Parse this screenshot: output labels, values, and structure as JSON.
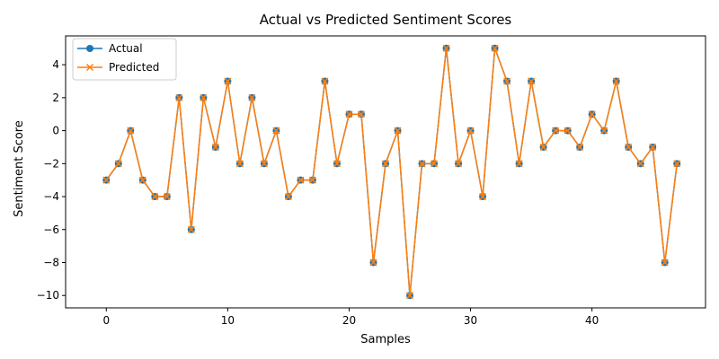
{
  "chart_data": {
    "type": "line",
    "title": "Actual vs Predicted Sentiment Scores",
    "xlabel": "Samples",
    "ylabel": "Sentiment Score",
    "xlim": [
      -3.35,
      49.35
    ],
    "ylim": [
      -10.75,
      5.75
    ],
    "xticks": [
      0,
      10,
      20,
      30,
      40
    ],
    "yticks": [
      -10,
      -8,
      -6,
      -4,
      -2,
      0,
      2,
      4
    ],
    "ytick_labels": [
      "−10",
      "−8",
      "−6",
      "−4",
      "−2",
      "0",
      "2",
      "4"
    ],
    "grid": false,
    "legend_position": "top-left",
    "x": [
      0,
      1,
      2,
      3,
      4,
      5,
      6,
      7,
      8,
      9,
      10,
      11,
      12,
      13,
      14,
      15,
      16,
      17,
      18,
      19,
      20,
      21,
      22,
      23,
      24,
      25,
      26,
      27,
      28,
      29,
      30,
      31,
      32,
      33,
      34,
      35,
      36,
      37,
      38,
      39,
      40,
      41,
      42,
      43,
      44,
      45,
      46,
      47
    ],
    "series": [
      {
        "name": "Actual",
        "marker": "circle",
        "color": "#1f77b4",
        "values": [
          -3,
          -2,
          0,
          -3,
          -4,
          -4,
          2,
          -6,
          2,
          -1,
          3,
          -2,
          2,
          -2,
          0,
          -4,
          -3,
          -3,
          3,
          -2,
          1,
          1,
          -8,
          -2,
          0,
          -10,
          -2,
          -2,
          5,
          -2,
          0,
          -4,
          5,
          3,
          -2,
          3,
          -1,
          0,
          0,
          -1,
          1,
          0,
          3,
          -1,
          -2,
          -1,
          -8,
          -2
        ]
      },
      {
        "name": "Predicted",
        "marker": "x",
        "color": "#ff7f0e",
        "values": [
          -3,
          -2,
          0,
          -3,
          -4,
          -4,
          2,
          -6,
          2,
          -1,
          3,
          -2,
          2,
          -2,
          0,
          -4,
          -3,
          -3,
          3,
          -2,
          1,
          1,
          -8,
          -2,
          0,
          -10,
          -2,
          -2,
          5,
          -2,
          0,
          -4,
          5,
          3,
          -2,
          3,
          -1,
          0,
          0,
          -1,
          1,
          0,
          3,
          -1,
          -2,
          -1,
          -8,
          -2
        ]
      }
    ]
  }
}
